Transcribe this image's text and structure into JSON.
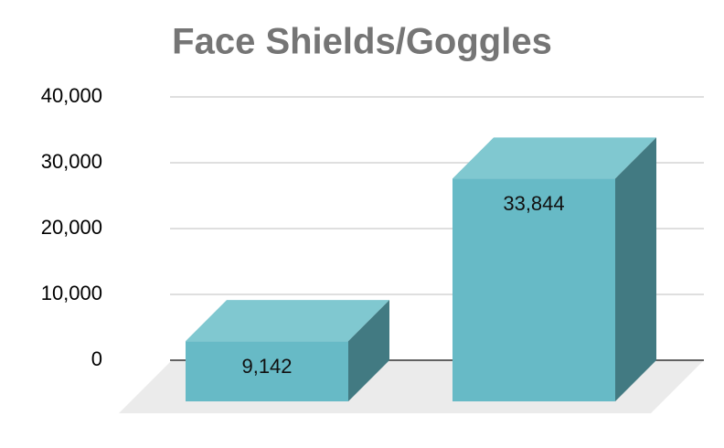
{
  "chart_data": {
    "type": "bar3d",
    "title": "Face Shields/Goggles",
    "categories": [
      null,
      null
    ],
    "values": [
      9142,
      33844
    ],
    "value_labels": [
      "9,142",
      "33,844"
    ],
    "color": "#67bac6",
    "ylim": [
      0,
      40000
    ],
    "yticks": [
      0,
      {
        "value": 10000,
        "label": "10,000"
      },
      {
        "value": 20000,
        "label": "20,000"
      },
      {
        "value": 30000,
        "label": "30,000"
      },
      {
        "value": 40000,
        "label": "40,000"
      }
    ],
    "grid": true
  }
}
